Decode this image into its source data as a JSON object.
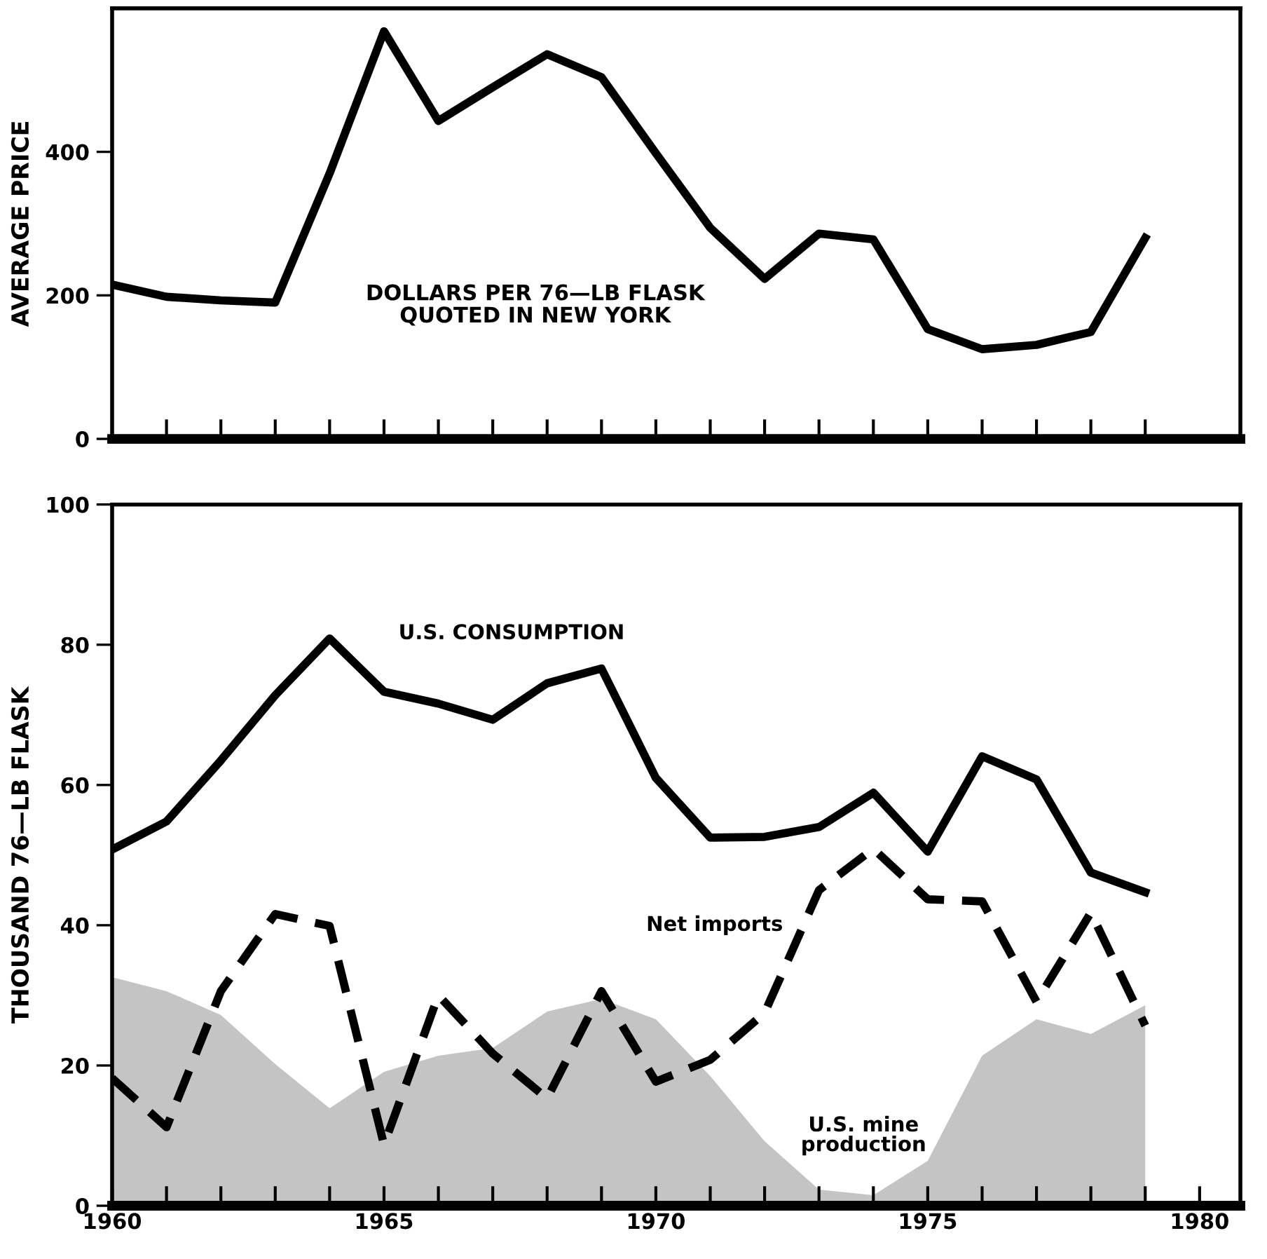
{
  "chart_data": [
    {
      "type": "line",
      "ylabel": "AVERAGE PRICE",
      "annotations": [
        "DOLLARS PER 76—LB FLASK\nQUOTED IN NEW YORK"
      ],
      "x": [
        1960,
        1961,
        1962,
        1963,
        1964,
        1965,
        1966,
        1967,
        1968,
        1969,
        1970,
        1971,
        1972,
        1973,
        1974,
        1975,
        1976,
        1977,
        1978,
        1979
      ],
      "series": [
        {
          "color": "#000000",
          "values": [
            215,
            198,
            193,
            190,
            370,
            568,
            443,
            490,
            536,
            504,
            398,
            294,
            223,
            286,
            278,
            153,
            125,
            131,
            149,
            280
          ]
        }
      ],
      "xlim": [
        1960,
        1980.75
      ],
      "ylim": [
        0,
        600
      ],
      "yticks": [
        0,
        200,
        400
      ],
      "xticks": [
        {
          "value": 1961,
          "label": null
        },
        {
          "value": 1962,
          "label": null
        },
        {
          "value": 1963,
          "label": null
        },
        {
          "value": 1964,
          "label": null
        },
        {
          "value": 1965,
          "label": null
        },
        {
          "value": 1966,
          "label": null
        },
        {
          "value": 1967,
          "label": null
        },
        {
          "value": 1968,
          "label": null
        },
        {
          "value": 1969,
          "label": null
        },
        {
          "value": 1970,
          "label": null
        },
        {
          "value": 1971,
          "label": null
        },
        {
          "value": 1972,
          "label": null
        },
        {
          "value": 1973,
          "label": null
        },
        {
          "value": 1974,
          "label": null
        },
        {
          "value": 1975,
          "label": null
        },
        {
          "value": 1976,
          "label": null
        },
        {
          "value": 1977,
          "label": null
        },
        {
          "value": 1978,
          "label": null
        },
        {
          "value": 1979,
          "label": null
        }
      ],
      "tick_labels": "y",
      "grid": false,
      "legend": false
    },
    {
      "type": "line",
      "ylabel": "THOUSAND 76—LB FLASK",
      "x": [
        1960,
        1961,
        1962,
        1963,
        1964,
        1965,
        1966,
        1967,
        1968,
        1969,
        1970,
        1971,
        1972,
        1973,
        1974,
        1975,
        1976,
        1977,
        1978,
        1979
      ],
      "series": [
        {
          "name": "U.S. mine production",
          "type": "area",
          "color": "#c4c4c4",
          "values": [
            32.6,
            30.6,
            27.2,
            20.2,
            13.9,
            19.1,
            21.4,
            22.5,
            27.7,
            29.5,
            26.6,
            18.5,
            9.2,
            2.3,
            1.5,
            6.4,
            21.4,
            26.6,
            24.5,
            28.6
          ]
        },
        {
          "name": "U.S. CONSUMPTION",
          "type": "line",
          "color": "#000000",
          "line_style": "solid",
          "values": [
            50.8,
            54.8,
            63.5,
            72.8,
            80.9,
            73.3,
            71.6,
            69.3,
            74.5,
            76.6,
            61,
            52.5,
            52.6,
            54,
            58.9,
            50.5,
            64.1,
            60.8,
            47.5,
            44.7
          ]
        },
        {
          "name": "Net imports",
          "type": "line",
          "color": "#000000",
          "line_style": "dashed",
          "values": [
            18.2,
            11.2,
            30.6,
            41.6,
            39.9,
            8.7,
            30,
            21.7,
            15.3,
            30.6,
            17.7,
            20.8,
            27.5,
            45,
            50.9,
            43.7,
            43.4,
            29.1,
            41.8,
            25.7
          ]
        }
      ],
      "xlim": [
        1960,
        1980.75
      ],
      "ylim": [
        0,
        100
      ],
      "yticks": [
        0,
        20,
        40,
        60,
        80,
        100
      ],
      "xticks": [
        1960,
        {
          "value": 1961,
          "label": null
        },
        {
          "value": 1962,
          "label": null
        },
        {
          "value": 1963,
          "label": null
        },
        {
          "value": 1964,
          "label": null
        },
        1965,
        {
          "value": 1966,
          "label": null
        },
        {
          "value": 1967,
          "label": null
        },
        {
          "value": 1968,
          "label": null
        },
        {
          "value": 1969,
          "label": null
        },
        1970,
        {
          "value": 1971,
          "label": null
        },
        {
          "value": 1972,
          "label": null
        },
        {
          "value": 1973,
          "label": null
        },
        {
          "value": 1974,
          "label": null
        },
        1975,
        {
          "value": 1976,
          "label": null
        },
        {
          "value": 1977,
          "label": null
        },
        {
          "value": 1978,
          "label": null
        },
        {
          "value": 1979,
          "label": null
        },
        1980
      ],
      "grid": false,
      "legend": false
    }
  ]
}
